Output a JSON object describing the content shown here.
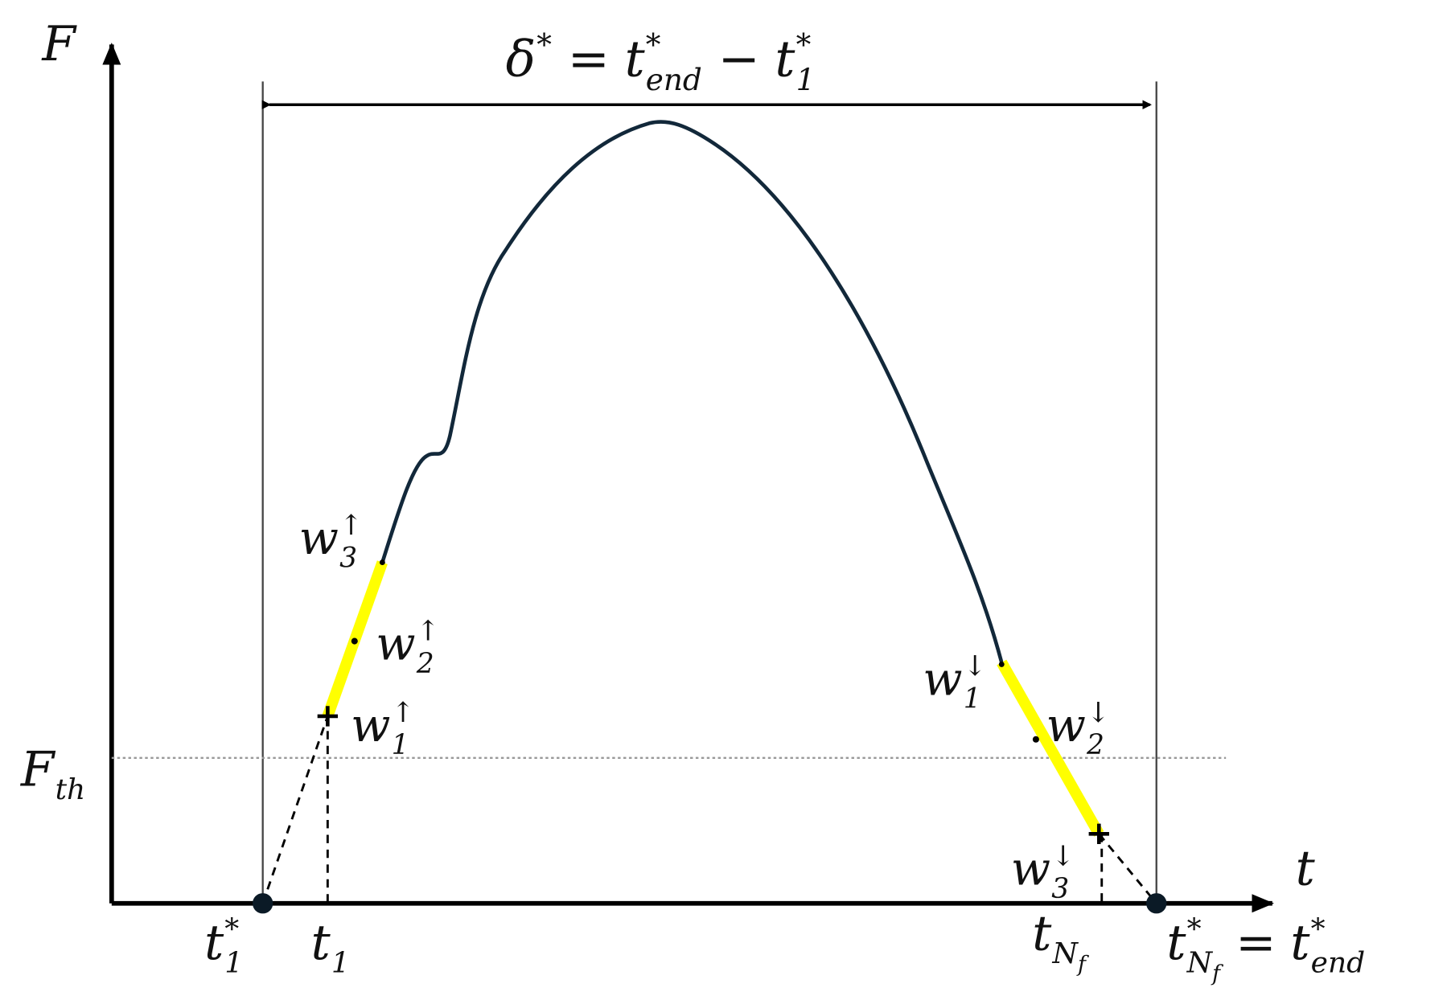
{
  "axes": {
    "y": {
      "base": "F"
    },
    "x": {
      "base": "t"
    }
  },
  "threshold": {
    "base": "F",
    "sub": "th"
  },
  "equation": [
    {
      "base": "δ",
      "sup": "*"
    },
    "=",
    {
      "base": "t",
      "sub": "end",
      "sup": "*"
    },
    "−",
    {
      "base": "t",
      "sub": "1",
      "sup": "*"
    }
  ],
  "x_labels": {
    "start": {
      "base": "t",
      "sub": "1",
      "sup": "*"
    },
    "first": {
      "base": "t",
      "sub": "1"
    },
    "last": {
      "base": "t",
      "sub": "N",
      "subsub": "f"
    },
    "end": [
      {
        "base": "t",
        "sub": "N",
        "subsub": "f",
        "sup": "*"
      },
      "=",
      {
        "base": "t",
        "sub": "end",
        "sup": "*"
      }
    ]
  },
  "rising": [
    {
      "base": "w",
      "sub": "3",
      "sup": "↑"
    },
    {
      "base": "w",
      "sub": "2",
      "sup": "↑"
    },
    {
      "base": "w",
      "sub": "1",
      "sup": "↑"
    }
  ],
  "falling": [
    {
      "base": "w",
      "sub": "1",
      "sup": "↓"
    },
    {
      "base": "w",
      "sub": "2",
      "sup": "↓"
    },
    {
      "base": "w",
      "sub": "3",
      "sup": "↓"
    }
  ]
}
